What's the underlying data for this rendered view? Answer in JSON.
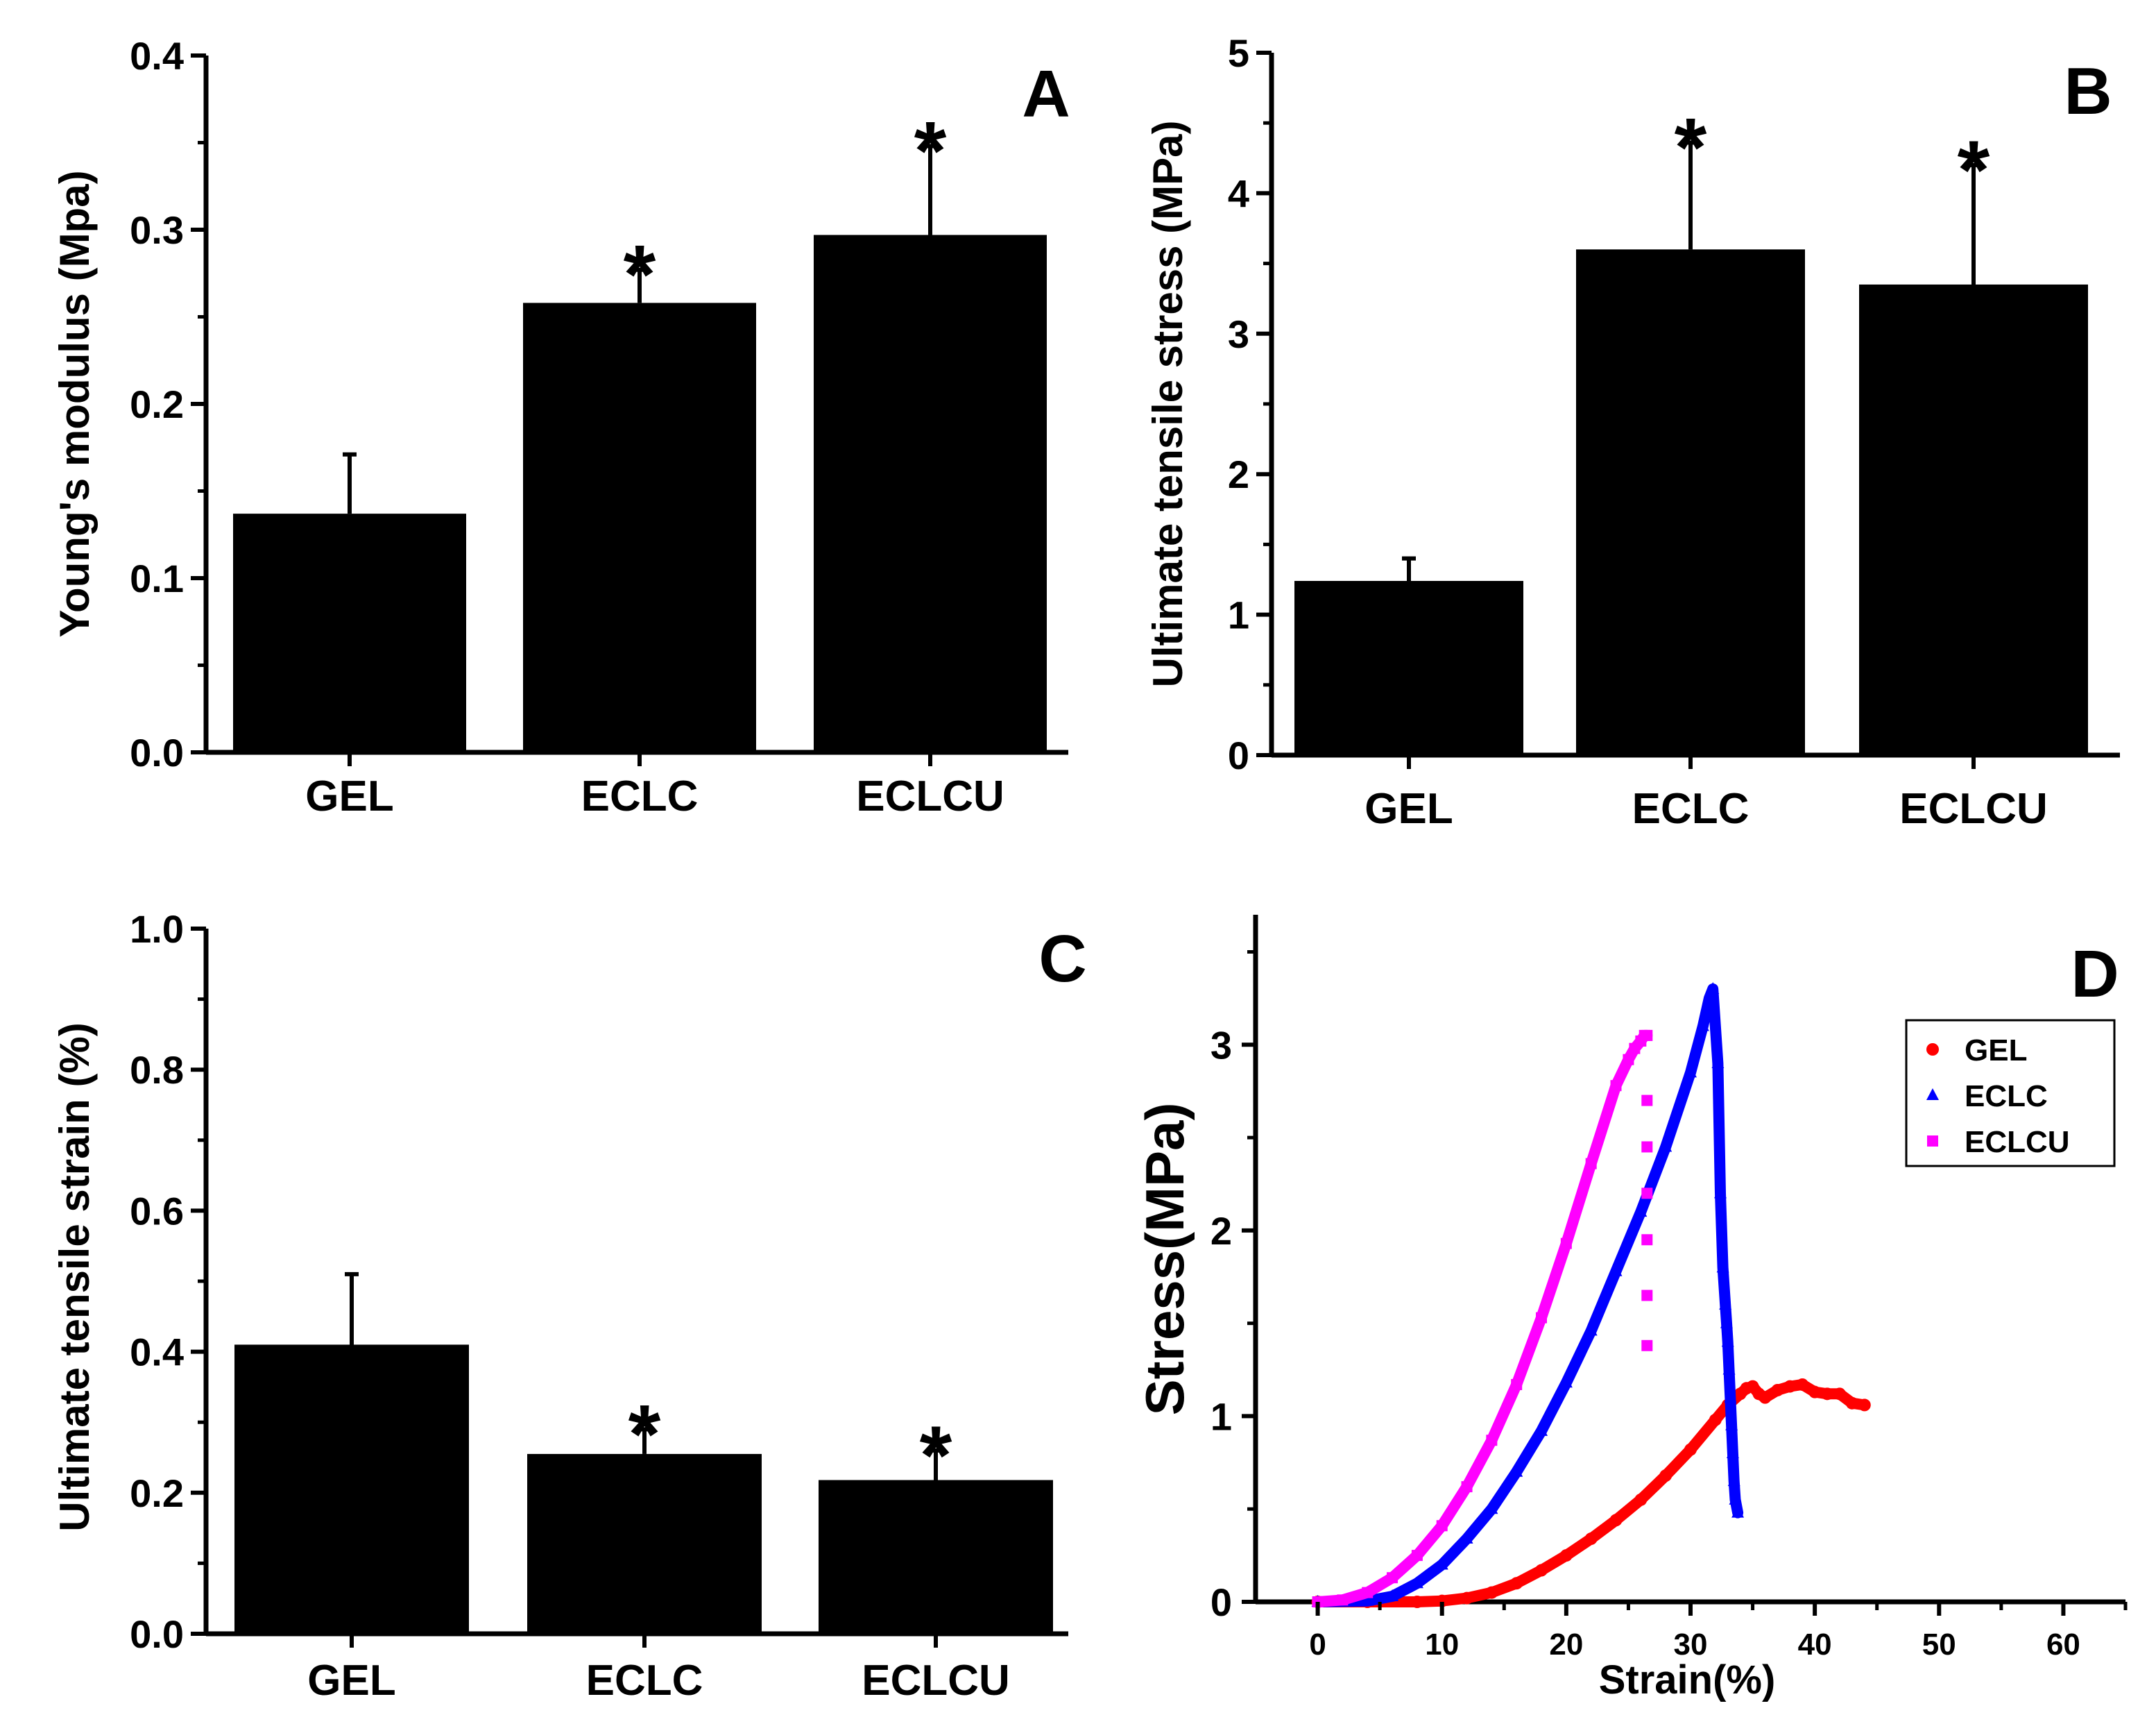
{
  "colors": {
    "bar": "#000000",
    "gel": "#ff0000",
    "eclc": "#0000ff",
    "eclcu": "#ff00ff"
  },
  "chart_data": [
    {
      "panel": "A",
      "type": "bar",
      "categories": [
        "GEL",
        "ECLC",
        "ECLCU"
      ],
      "values": [
        0.137,
        0.258,
        0.297
      ],
      "errors": [
        0.034,
        0.019,
        0.051
      ],
      "significance": [
        "",
        "*",
        "*"
      ],
      "ylabel": "Young's modulus (Mpa)",
      "ylim": [
        0,
        0.4
      ],
      "yticks": [
        0.0,
        0.1,
        0.2,
        0.3,
        0.4
      ],
      "ytick_labels": [
        "0.0",
        "0.1",
        "0.2",
        "0.3",
        "0.4"
      ]
    },
    {
      "panel": "B",
      "type": "bar",
      "categories": [
        "GEL",
        "ECLC",
        "ECLCU"
      ],
      "values": [
        1.24,
        3.6,
        3.35
      ],
      "errors": [
        0.16,
        0.76,
        0.85
      ],
      "significance": [
        "",
        "*",
        "*"
      ],
      "ylabel": "Ultimate tensile stress (MPa)",
      "ylim": [
        0,
        5
      ],
      "yticks": [
        0,
        1,
        2,
        3,
        4,
        5
      ],
      "ytick_labels": [
        "0",
        "1",
        "2",
        "3",
        "4",
        "5"
      ]
    },
    {
      "panel": "C",
      "type": "bar",
      "categories": [
        "GEL",
        "ECLC",
        "ECLCU"
      ],
      "values": [
        0.41,
        0.255,
        0.218
      ],
      "errors": [
        0.1,
        0.035,
        0.042
      ],
      "significance": [
        "",
        "*",
        "*"
      ],
      "ylabel": "Ultimate tensile strain (%)",
      "ylim": [
        0,
        1.0
      ],
      "yticks": [
        0.0,
        0.2,
        0.4,
        0.6,
        0.8,
        1.0
      ],
      "ytick_labels": [
        "0.0",
        "0.2",
        "0.4",
        "0.6",
        "0.8",
        "1.0"
      ]
    },
    {
      "panel": "D",
      "type": "scatter",
      "xlabel": "Strain(%)",
      "ylabel": "Stress(MPa)",
      "xlim": [
        -5,
        65
      ],
      "ylim": [
        0,
        3.7
      ],
      "xticks": [
        0,
        10,
        20,
        30,
        40,
        50,
        60
      ],
      "xtick_labels": [
        "0",
        "10",
        "20",
        "30",
        "40",
        "50",
        "60"
      ],
      "yticks": [
        0,
        1,
        2,
        3
      ],
      "ytick_labels": [
        "0",
        "1",
        "2",
        "3"
      ],
      "legend_position": "top-right",
      "series": [
        {
          "name": "GEL",
          "marker": "circle",
          "color": "#ff0000",
          "x": [
            0,
            4,
            8,
            10,
            12,
            14,
            16,
            18,
            20,
            22,
            24,
            26,
            28,
            30,
            32,
            33,
            34,
            34.5,
            35,
            35.5,
            36,
            37,
            38,
            39,
            40,
            41,
            42,
            43,
            44
          ],
          "y": [
            0,
            0,
            0,
            0.005,
            0.02,
            0.05,
            0.1,
            0.17,
            0.25,
            0.34,
            0.44,
            0.55,
            0.68,
            0.82,
            0.98,
            1.06,
            1.12,
            1.15,
            1.16,
            1.12,
            1.1,
            1.14,
            1.16,
            1.17,
            1.13,
            1.12,
            1.12,
            1.07,
            1.06
          ]
        },
        {
          "name": "ECLC",
          "marker": "triangle",
          "color": "#0000ff",
          "x": [
            0,
            4,
            6,
            8,
            10,
            12,
            14,
            16,
            18,
            20,
            22,
            24,
            26,
            28,
            30,
            31,
            31.5,
            31.8,
            32.2,
            32.4,
            32.6,
            32.8,
            32.9,
            33,
            33.1,
            33.2,
            33.3,
            33.4,
            33.5,
            33.6,
            33.8
          ],
          "y": [
            0,
            0.005,
            0.03,
            0.1,
            0.2,
            0.34,
            0.5,
            0.7,
            0.92,
            1.18,
            1.46,
            1.78,
            2.1,
            2.45,
            2.85,
            3.1,
            3.25,
            3.3,
            2.9,
            2.2,
            1.8,
            1.6,
            1.5,
            1.4,
            1.25,
            1.1,
            0.95,
            0.8,
            0.65,
            0.55,
            0.48
          ]
        },
        {
          "name": "ECLCU",
          "marker": "square",
          "color": "#ff00ff",
          "x": [
            0,
            2,
            4,
            6,
            8,
            10,
            12,
            14,
            16,
            18,
            20,
            22,
            24,
            25,
            25.5,
            26,
            26.3,
            26.5,
            26.5,
            26.5,
            26.5,
            26.5,
            26.5,
            26.5
          ],
          "y": [
            0,
            0.01,
            0.05,
            0.13,
            0.25,
            0.41,
            0.62,
            0.87,
            1.17,
            1.53,
            1.93,
            2.36,
            2.78,
            2.92,
            2.98,
            3.02,
            3.05,
            3.05,
            2.7,
            2.45,
            2.2,
            1.95,
            1.65,
            1.38
          ]
        }
      ]
    }
  ]
}
